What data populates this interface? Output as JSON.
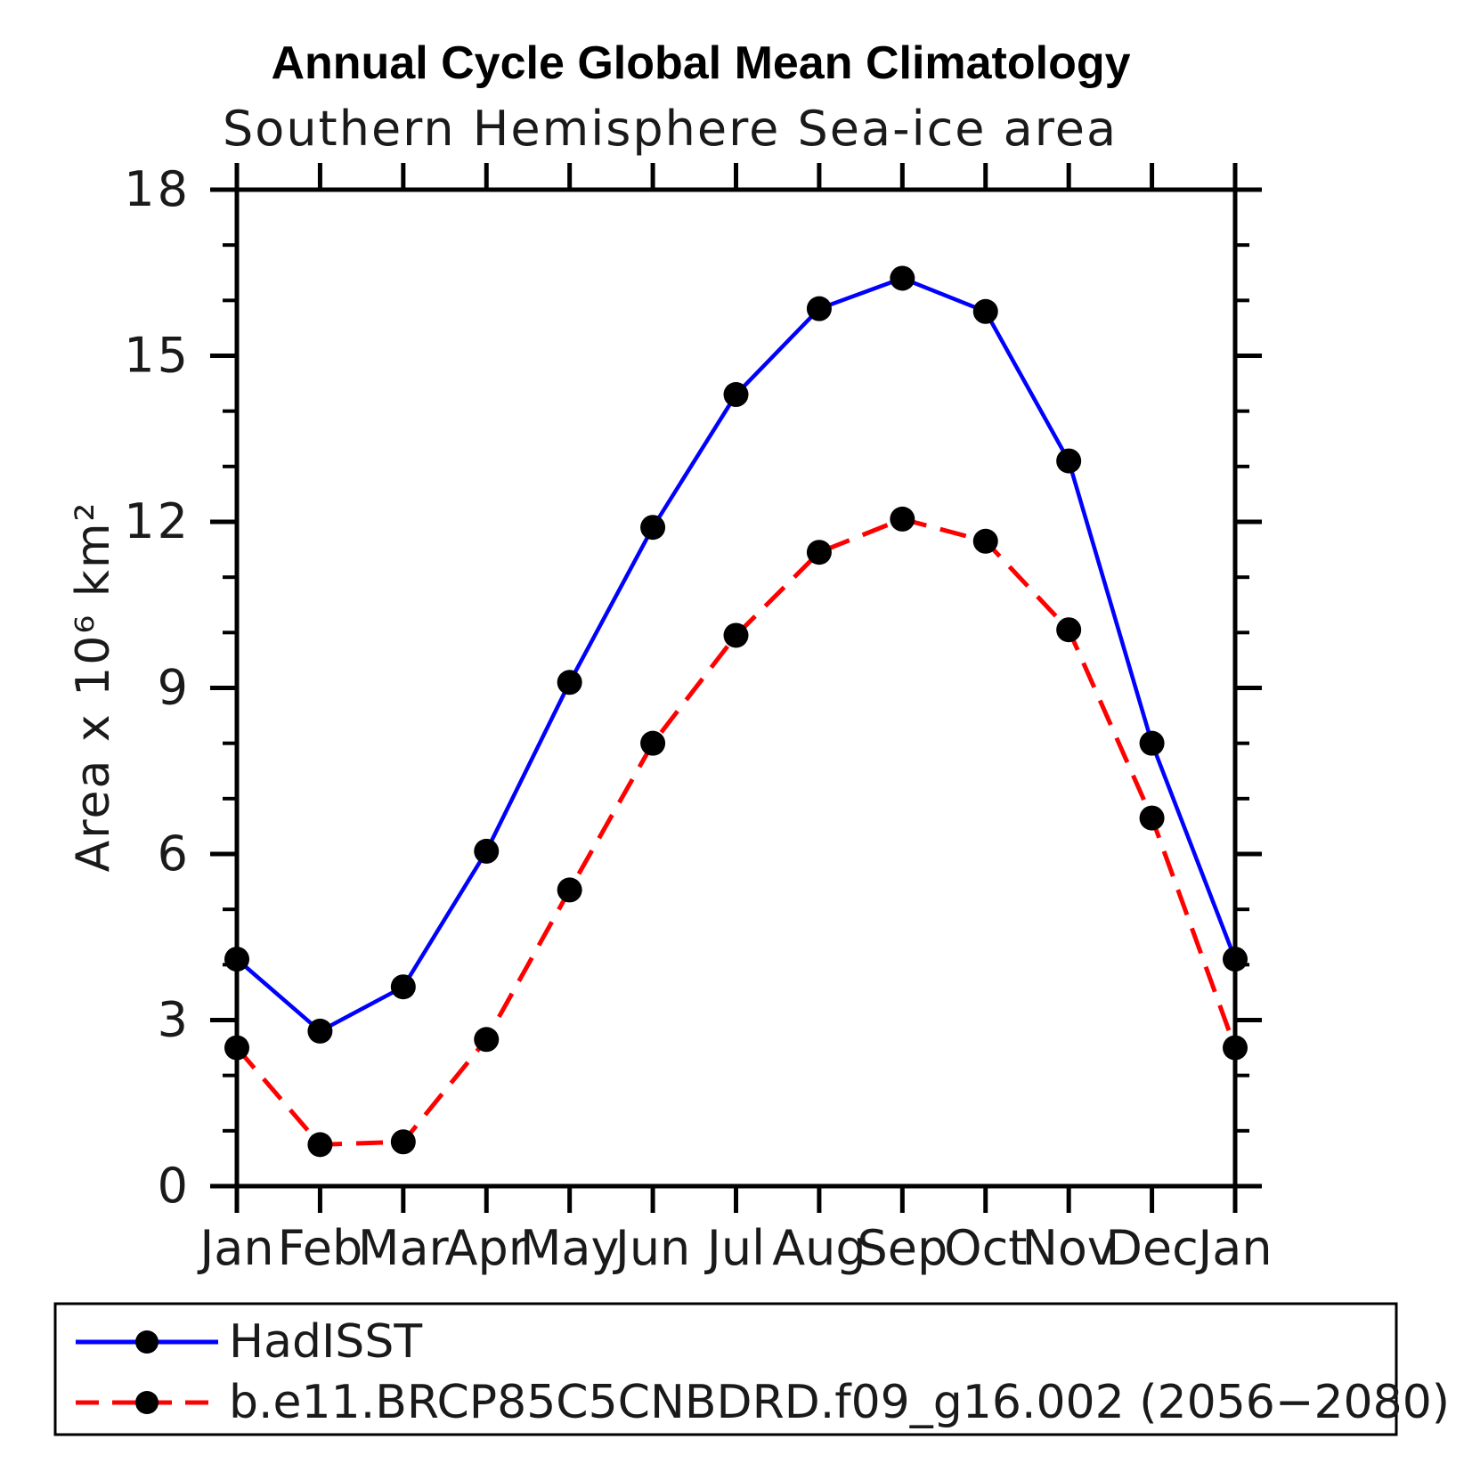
{
  "chart_data": {
    "type": "line",
    "title": "Annual Cycle Global Mean Climatology",
    "subtitle": "Southern Hemisphere Sea-ice area",
    "ylabel": "Area x 10⁶ km²",
    "xlabel": "",
    "categories": [
      "Jan",
      "Feb",
      "Mar",
      "Apr",
      "May",
      "Jun",
      "Jul",
      "Aug",
      "Sep",
      "Oct",
      "Nov",
      "Dec",
      "Jan"
    ],
    "ylim": [
      0,
      18
    ],
    "y_major_ticks": [
      0,
      3,
      6,
      9,
      12,
      15,
      18
    ],
    "y_minor_interval": 1,
    "grid": "off",
    "legend_position": "bottom-box",
    "axis_color": "#000000",
    "marker_color": "#000000",
    "series": [
      {
        "name": "HadISST",
        "color": "#0000ff",
        "line_style": "solid",
        "marker": "circle",
        "values": [
          4.1,
          2.8,
          3.6,
          6.05,
          9.1,
          11.9,
          14.3,
          15.85,
          16.4,
          15.8,
          13.1,
          8.0,
          4.1
        ]
      },
      {
        "name": "b.e11.BRCP85C5CNBDRD.f09_g16.002 (2056−2080)",
        "color": "#ff0000",
        "line_style": "dashed",
        "marker": "circle",
        "values": [
          2.5,
          0.75,
          0.8,
          2.65,
          5.35,
          8.0,
          9.95,
          11.45,
          12.05,
          11.65,
          10.05,
          6.65,
          2.5
        ]
      }
    ]
  }
}
